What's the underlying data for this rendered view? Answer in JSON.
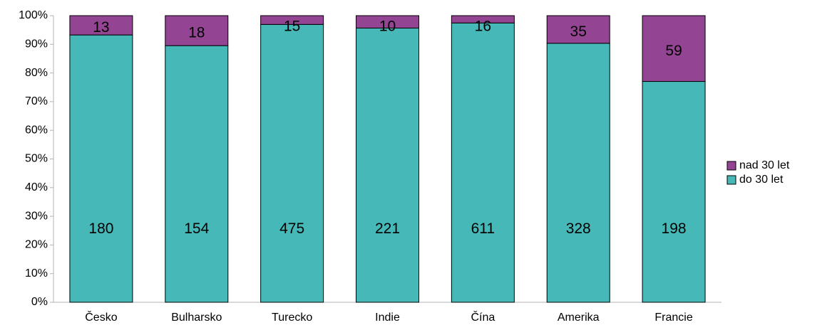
{
  "chart_data": {
    "type": "bar",
    "stacked": "percent",
    "categories": [
      "Česko",
      "Bulharsko",
      "Turecko",
      "Indie",
      "Čína",
      "Amerika",
      "Francie"
    ],
    "series": [
      {
        "name": "do 30 let",
        "color": "#47b8b8",
        "values": [
          180,
          154,
          475,
          221,
          611,
          328,
          198
        ]
      },
      {
        "name": "nad 30 let",
        "color": "#934593",
        "values": [
          13,
          18,
          15,
          10,
          16,
          35,
          59
        ]
      }
    ],
    "ylim": [
      0,
      100
    ],
    "yticks": [
      {
        "value": 0,
        "label": "0%"
      },
      {
        "value": 10,
        "label": "10%"
      },
      {
        "value": 20,
        "label": "20%"
      },
      {
        "value": 30,
        "label": "30%"
      },
      {
        "value": 40,
        "label": "40%"
      },
      {
        "value": 50,
        "label": "50%"
      },
      {
        "value": 60,
        "label": "60%"
      },
      {
        "value": 70,
        "label": "70%"
      },
      {
        "value": 80,
        "label": "80%"
      },
      {
        "value": 90,
        "label": "90%"
      },
      {
        "value": 100,
        "label": "100%"
      }
    ],
    "legend": "right"
  }
}
